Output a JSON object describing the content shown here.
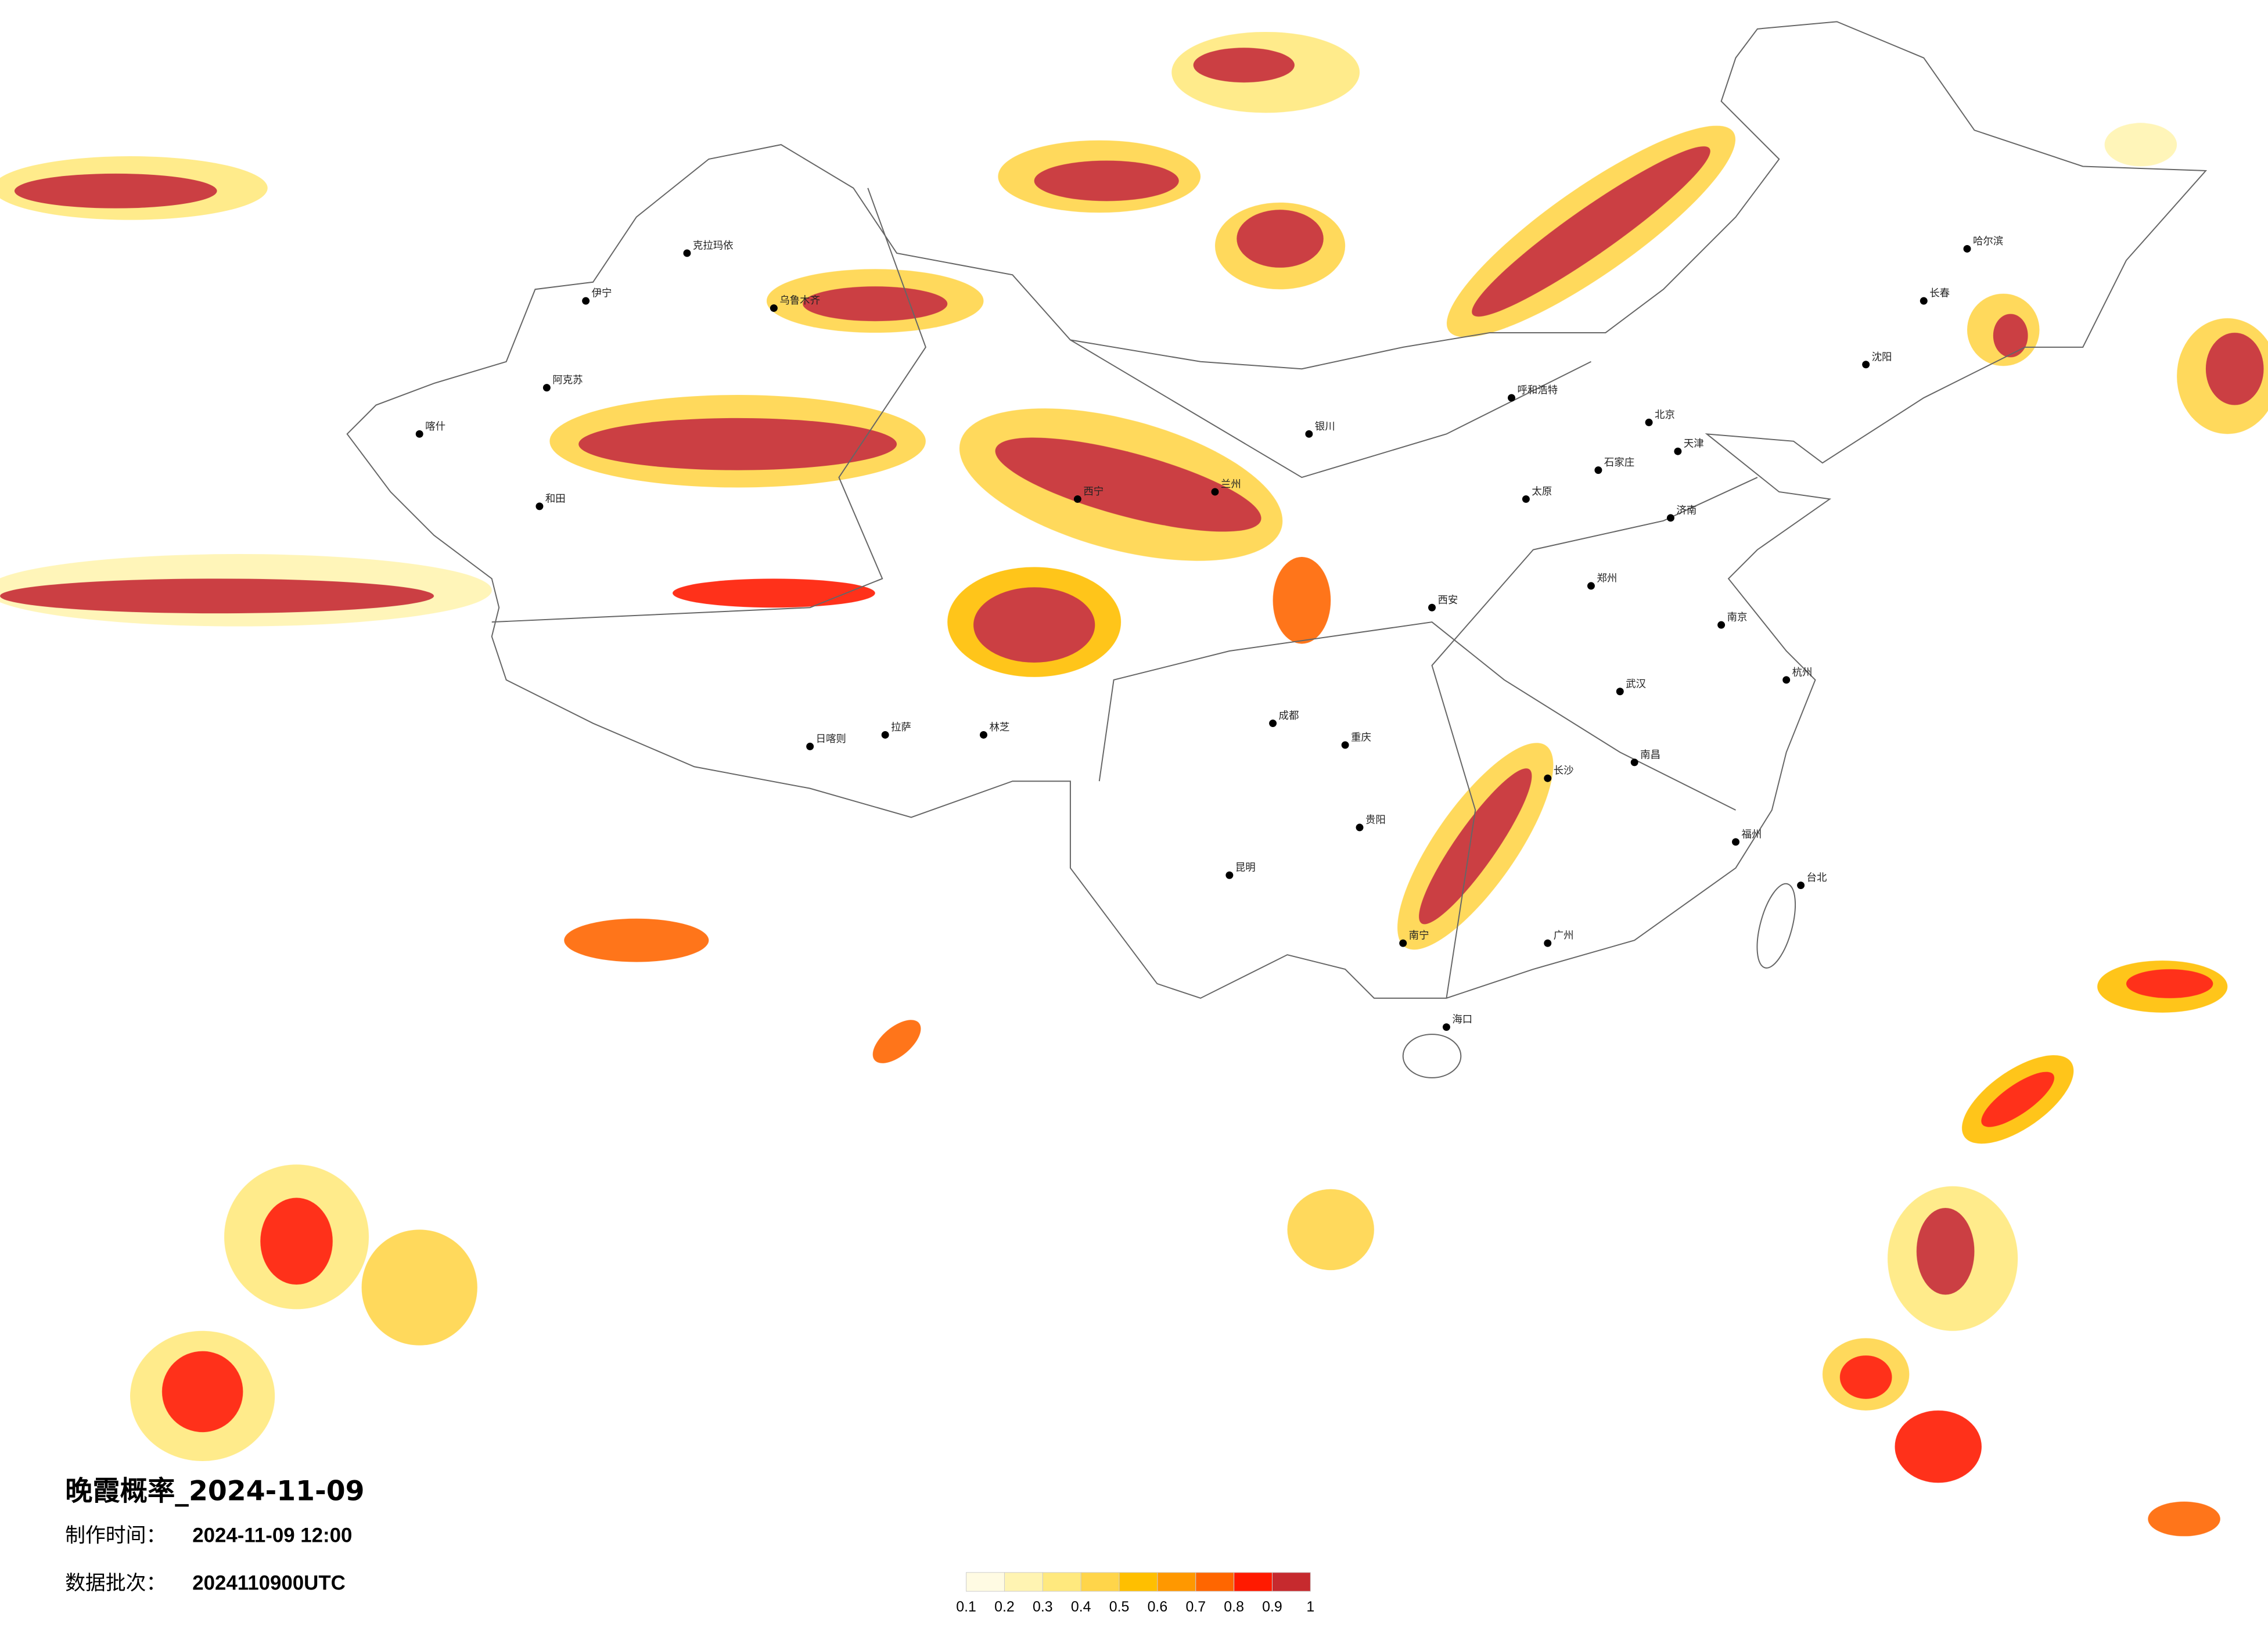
{
  "header": {
    "title": "晚霞概率_2024-11-09",
    "made_label": "制作时间：",
    "made_time": "2024-11-09 12:00",
    "batch_label": "数据批次：",
    "batch": "2024110900UTC"
  },
  "legend": {
    "colors": [
      "#fffbe3",
      "#fff4b2",
      "#ffe97e",
      "#ffd54a",
      "#ffbf00",
      "#ff9800",
      "#ff6600",
      "#ff1a00",
      "#c62a2e"
    ],
    "ticks": [
      0.1,
      0.2,
      0.3,
      0.4,
      0.5,
      0.6,
      0.7,
      0.8,
      0.9,
      1
    ]
  },
  "cities": [
    "克拉玛依",
    "乌鲁木齐",
    "伊宁",
    "阿克苏",
    "喀什",
    "和田",
    "拉萨",
    "日喀则",
    "林芝",
    "西宁",
    "兰州",
    "银川",
    "呼和浩特",
    "北京",
    "天津",
    "石家庄",
    "太原",
    "济南",
    "郑州",
    "西安",
    "成都",
    "重庆",
    "武汉",
    "长沙",
    "南昌",
    "杭州",
    "南京",
    "福州",
    "广州",
    "南宁",
    "昆明",
    "贵阳",
    "海口",
    "哈尔滨",
    "长春",
    "沈阳",
    "台北"
  ]
}
